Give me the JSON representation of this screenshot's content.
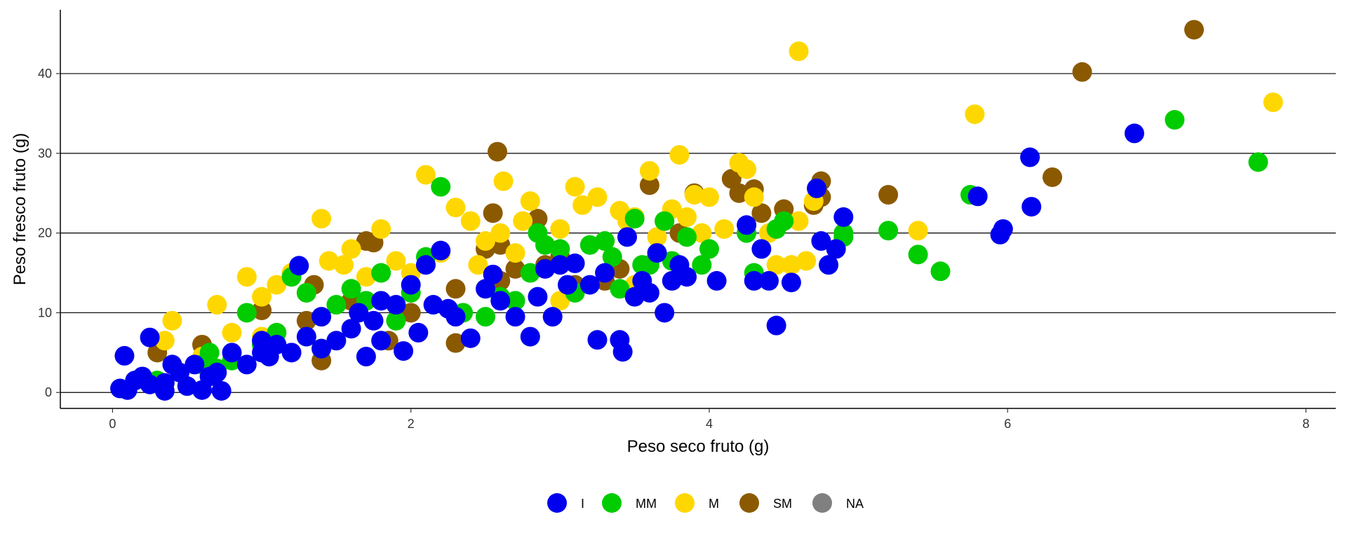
{
  "chart_data": {
    "type": "scatter",
    "title": "",
    "xlabel": "Peso seco fruto (g)",
    "ylabel": "Peso fresco fruto (g)",
    "xlim": [
      -0.35,
      8.2
    ],
    "ylim": [
      -2,
      48
    ],
    "xticks": [
      0,
      2,
      4,
      6,
      8
    ],
    "yticks": [
      0,
      10,
      20,
      30,
      40
    ],
    "grid": "horizontal major lines",
    "legend_position": "bottom",
    "series": [
      {
        "name": "SM",
        "color": "#8B5A00",
        "points": [
          [
            0.3,
            5.0
          ],
          [
            0.6,
            6.0
          ],
          [
            1.0,
            10.3
          ],
          [
            1.3,
            9.0
          ],
          [
            1.35,
            13.5
          ],
          [
            1.6,
            11.5
          ],
          [
            1.7,
            19.0
          ],
          [
            1.75,
            18.8
          ],
          [
            1.85,
            6.5
          ],
          [
            2.0,
            10.0
          ],
          [
            2.3,
            13.0
          ],
          [
            2.5,
            18.0
          ],
          [
            2.55,
            22.5
          ],
          [
            2.6,
            18.5
          ],
          [
            2.6,
            14.0
          ],
          [
            2.7,
            15.5
          ],
          [
            2.85,
            21.8
          ],
          [
            2.9,
            16.0
          ],
          [
            3.0,
            17.0
          ],
          [
            3.1,
            13.5
          ],
          [
            3.3,
            14.0
          ],
          [
            3.4,
            15.5
          ],
          [
            3.6,
            26.0
          ],
          [
            3.7,
            21.5
          ],
          [
            3.8,
            20.0
          ],
          [
            3.9,
            25.0
          ],
          [
            4.15,
            26.8
          ],
          [
            4.2,
            25.0
          ],
          [
            4.3,
            25.5
          ],
          [
            4.35,
            22.5
          ],
          [
            4.5,
            23.0
          ],
          [
            4.7,
            23.5
          ],
          [
            4.75,
            26.5
          ],
          [
            4.75,
            24.5
          ],
          [
            2.58,
            30.2
          ],
          [
            5.2,
            24.8
          ],
          [
            6.3,
            27.0
          ],
          [
            6.5,
            40.2
          ],
          [
            7.25,
            45.5
          ],
          [
            1.4,
            4.0
          ],
          [
            2.3,
            6.2
          ]
        ]
      },
      {
        "name": "M",
        "color": "#FFD700",
        "points": [
          [
            0.35,
            6.5
          ],
          [
            0.4,
            9.0
          ],
          [
            0.6,
            4.5
          ],
          [
            0.7,
            11.0
          ],
          [
            0.9,
            14.5
          ],
          [
            1.0,
            12.0
          ],
          [
            1.1,
            13.5
          ],
          [
            1.2,
            15.0
          ],
          [
            1.3,
            12.5
          ],
          [
            1.4,
            21.8
          ],
          [
            1.45,
            16.5
          ],
          [
            1.55,
            16.0
          ],
          [
            1.6,
            18.0
          ],
          [
            1.7,
            14.5
          ],
          [
            1.8,
            20.5
          ],
          [
            1.9,
            16.5
          ],
          [
            2.0,
            15.0
          ],
          [
            2.1,
            27.3
          ],
          [
            2.2,
            17.5
          ],
          [
            2.3,
            23.2
          ],
          [
            2.4,
            21.5
          ],
          [
            2.45,
            16.0
          ],
          [
            2.5,
            19.0
          ],
          [
            2.6,
            20.0
          ],
          [
            2.62,
            26.5
          ],
          [
            2.7,
            17.5
          ],
          [
            2.75,
            21.5
          ],
          [
            2.8,
            24.0
          ],
          [
            2.9,
            18.5
          ],
          [
            3.0,
            20.5
          ],
          [
            3.1,
            25.8
          ],
          [
            3.15,
            23.5
          ],
          [
            3.25,
            24.5
          ],
          [
            3.3,
            19.0
          ],
          [
            3.4,
            22.8
          ],
          [
            3.45,
            21.5
          ],
          [
            3.5,
            22.0
          ],
          [
            3.6,
            27.8
          ],
          [
            3.65,
            19.5
          ],
          [
            3.75,
            23.0
          ],
          [
            3.8,
            29.8
          ],
          [
            3.85,
            22.0
          ],
          [
            3.9,
            24.8
          ],
          [
            3.95,
            20.0
          ],
          [
            4.0,
            24.5
          ],
          [
            4.1,
            20.5
          ],
          [
            4.2,
            28.8
          ],
          [
            4.25,
            28.0
          ],
          [
            4.3,
            24.5
          ],
          [
            4.4,
            20.0
          ],
          [
            4.45,
            16.0
          ],
          [
            4.55,
            16.0
          ],
          [
            4.6,
            21.5
          ],
          [
            4.65,
            16.5
          ],
          [
            4.7,
            24.0
          ],
          [
            4.6,
            42.8
          ],
          [
            5.4,
            20.3
          ],
          [
            5.78,
            34.9
          ],
          [
            7.78,
            36.4
          ],
          [
            2.0,
            12.5
          ],
          [
            3.5,
            13.5
          ],
          [
            3.0,
            11.5
          ],
          [
            1.0,
            7.0
          ],
          [
            0.8,
            7.5
          ]
        ]
      },
      {
        "name": "MM",
        "color": "#00CC00",
        "points": [
          [
            0.3,
            1.5
          ],
          [
            0.6,
            3.5
          ],
          [
            0.65,
            5.0
          ],
          [
            0.8,
            4.0
          ],
          [
            0.9,
            10.0
          ],
          [
            1.0,
            6.0
          ],
          [
            1.2,
            14.5
          ],
          [
            1.3,
            12.5
          ],
          [
            1.4,
            5.5
          ],
          [
            1.5,
            11.0
          ],
          [
            1.6,
            13.0
          ],
          [
            1.7,
            11.5
          ],
          [
            1.8,
            15.0
          ],
          [
            1.9,
            9.0
          ],
          [
            2.0,
            12.5
          ],
          [
            2.1,
            17.0
          ],
          [
            2.2,
            25.8
          ],
          [
            2.35,
            10.0
          ],
          [
            2.5,
            9.5
          ],
          [
            2.6,
            12.0
          ],
          [
            2.7,
            11.5
          ],
          [
            2.8,
            15.0
          ],
          [
            2.85,
            20.0
          ],
          [
            2.9,
            18.5
          ],
          [
            3.0,
            18.0
          ],
          [
            3.1,
            12.5
          ],
          [
            3.2,
            18.5
          ],
          [
            3.3,
            19.0
          ],
          [
            3.35,
            17.0
          ],
          [
            3.4,
            13.0
          ],
          [
            3.5,
            21.8
          ],
          [
            3.55,
            16.0
          ],
          [
            3.6,
            16.0
          ],
          [
            3.7,
            21.5
          ],
          [
            3.75,
            16.5
          ],
          [
            3.85,
            19.5
          ],
          [
            3.95,
            16.0
          ],
          [
            4.0,
            18.0
          ],
          [
            4.25,
            20.0
          ],
          [
            4.3,
            15.0
          ],
          [
            4.45,
            20.5
          ],
          [
            4.5,
            21.5
          ],
          [
            4.9,
            20.0
          ],
          [
            4.9,
            19.5
          ],
          [
            5.2,
            20.3
          ],
          [
            5.4,
            17.3
          ],
          [
            5.55,
            15.2
          ],
          [
            5.75,
            24.8
          ],
          [
            7.12,
            34.2
          ],
          [
            7.68,
            28.9
          ],
          [
            1.1,
            7.5
          ],
          [
            0.7,
            3.0
          ]
        ]
      },
      {
        "name": "I",
        "color": "#0000EE",
        "points": [
          [
            0.05,
            0.5
          ],
          [
            0.1,
            0.3
          ],
          [
            0.08,
            4.6
          ],
          [
            0.15,
            1.5
          ],
          [
            0.2,
            2.0
          ],
          [
            0.25,
            1.0
          ],
          [
            0.25,
            6.9
          ],
          [
            0.35,
            1.2
          ],
          [
            0.35,
            0.2
          ],
          [
            0.4,
            3.5
          ],
          [
            0.45,
            2.5
          ],
          [
            0.5,
            0.8
          ],
          [
            0.55,
            3.5
          ],
          [
            0.6,
            0.3
          ],
          [
            0.7,
            2.5
          ],
          [
            0.73,
            0.2
          ],
          [
            0.8,
            5.0
          ],
          [
            0.9,
            3.5
          ],
          [
            1.0,
            6.5
          ],
          [
            1.05,
            4.5
          ],
          [
            1.1,
            6.0
          ],
          [
            1.2,
            5.0
          ],
          [
            1.25,
            15.9
          ],
          [
            1.3,
            7.0
          ],
          [
            1.4,
            9.5
          ],
          [
            1.5,
            6.5
          ],
          [
            1.6,
            8.0
          ],
          [
            1.65,
            10.0
          ],
          [
            1.7,
            4.5
          ],
          [
            1.75,
            9.0
          ],
          [
            1.8,
            6.5
          ],
          [
            1.9,
            11.0
          ],
          [
            1.95,
            5.2
          ],
          [
            2.0,
            13.5
          ],
          [
            2.05,
            7.5
          ],
          [
            2.1,
            16.0
          ],
          [
            2.15,
            11.0
          ],
          [
            2.2,
            17.8
          ],
          [
            2.3,
            9.5
          ],
          [
            2.4,
            6.8
          ],
          [
            2.5,
            13.0
          ],
          [
            2.55,
            14.8
          ],
          [
            2.6,
            11.5
          ],
          [
            2.7,
            9.5
          ],
          [
            2.8,
            7.0
          ],
          [
            2.85,
            12.0
          ],
          [
            2.9,
            15.5
          ],
          [
            2.95,
            9.5
          ],
          [
            3.0,
            16.0
          ],
          [
            3.05,
            13.5
          ],
          [
            3.1,
            16.2
          ],
          [
            3.2,
            13.5
          ],
          [
            3.25,
            6.6
          ],
          [
            3.3,
            15.0
          ],
          [
            3.4,
            6.6
          ],
          [
            3.42,
            5.1
          ],
          [
            3.45,
            19.5
          ],
          [
            3.5,
            12.0
          ],
          [
            3.55,
            14.0
          ],
          [
            3.6,
            12.5
          ],
          [
            3.65,
            17.5
          ],
          [
            3.7,
            10.0
          ],
          [
            3.75,
            14.0
          ],
          [
            3.8,
            16.0
          ],
          [
            3.85,
            14.5
          ],
          [
            4.05,
            14.0
          ],
          [
            4.25,
            21.0
          ],
          [
            4.3,
            14.0
          ],
          [
            4.35,
            18.0
          ],
          [
            4.4,
            14.0
          ],
          [
            4.45,
            8.4
          ],
          [
            4.55,
            13.8
          ],
          [
            4.72,
            25.6
          ],
          [
            4.75,
            19.0
          ],
          [
            4.8,
            16.0
          ],
          [
            4.85,
            18.0
          ],
          [
            4.9,
            22.0
          ],
          [
            5.8,
            24.6
          ],
          [
            5.95,
            19.8
          ],
          [
            5.97,
            20.5
          ],
          [
            6.15,
            29.5
          ],
          [
            6.16,
            23.3
          ],
          [
            6.85,
            32.5
          ],
          [
            1.4,
            5.5
          ],
          [
            1.0,
            5.0
          ],
          [
            2.25,
            10.5
          ],
          [
            0.65,
            2.0
          ],
          [
            1.8,
            11.5
          ]
        ]
      }
    ]
  },
  "legend": {
    "items": [
      {
        "label": "I",
        "color": "#0000EE"
      },
      {
        "label": "MM",
        "color": "#00CC00"
      },
      {
        "label": "M",
        "color": "#FFD700"
      },
      {
        "label": "SM",
        "color": "#8B5A00"
      },
      {
        "label": "NA",
        "color": "#808080"
      }
    ]
  }
}
